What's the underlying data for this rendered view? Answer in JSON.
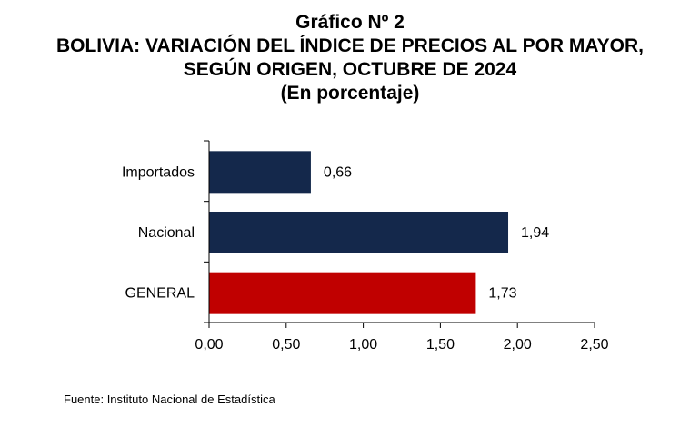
{
  "chart_data": {
    "type": "bar",
    "orientation": "horizontal",
    "title": "Gráfico Nº 2",
    "subtitle_lines": [
      "BOLIVIA: VARIACIÓN DEL ÍNDICE DE PRECIOS AL POR MAYOR,",
      "SEGÚN ORIGEN, OCTUBRE DE 2024",
      "(En porcentaje)"
    ],
    "categories": [
      "Importados",
      "Nacional",
      "GENERAL"
    ],
    "values": [
      0.66,
      1.94,
      1.73
    ],
    "value_labels": [
      "0,66",
      "1,94",
      "1,73"
    ],
    "bar_colors": [
      "#14284B",
      "#14284B",
      "#C00000"
    ],
    "xlim": [
      0,
      2.5
    ],
    "ticks": [
      0,
      0.5,
      1.0,
      1.5,
      2.0,
      2.5
    ],
    "tick_labels": [
      "0,00",
      "0,50",
      "1,00",
      "1,50",
      "2,00",
      "2,50"
    ],
    "xlabel": "",
    "ylabel": "",
    "grid": false,
    "legend": "none"
  },
  "source": "Fuente: Instituto Nacional de Estadística"
}
